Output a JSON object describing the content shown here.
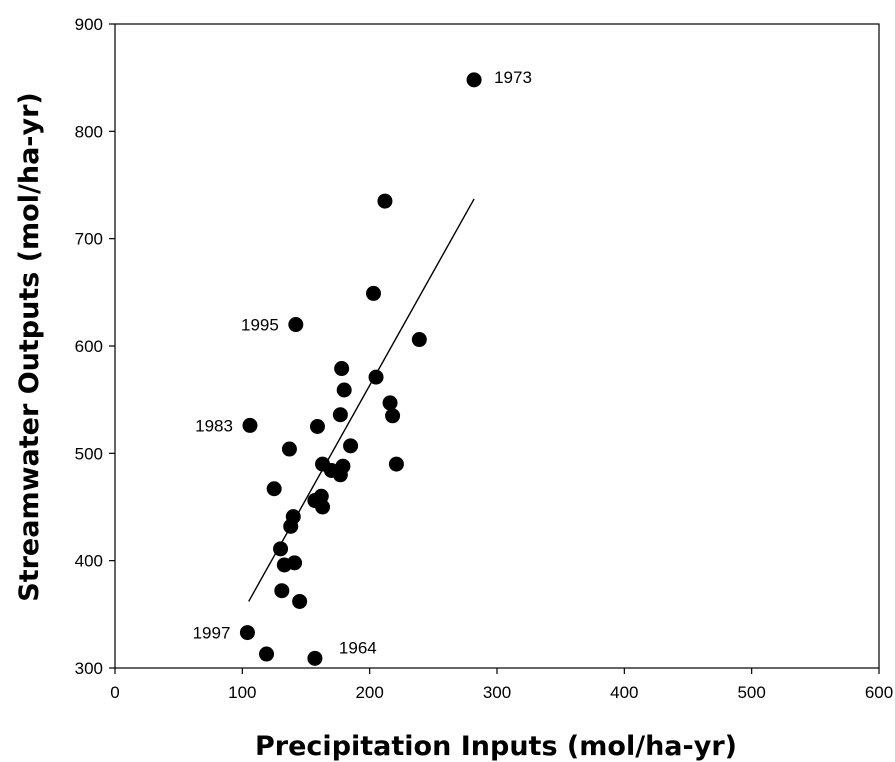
{
  "chart_data": {
    "type": "scatter",
    "title": "",
    "xlabel": "Precipitation Inputs (mol/ha-yr)",
    "ylabel": "Streamwater Outputs  (mol/ha-yr)",
    "xlim": [
      0,
      600
    ],
    "ylim": [
      300,
      900
    ],
    "xticks": [
      "0",
      "100",
      "200",
      "300",
      "400",
      "500",
      "600"
    ],
    "yticks": [
      "300",
      "400",
      "500",
      "600",
      "700",
      "800",
      "900"
    ],
    "grid": false,
    "points": [
      {
        "x": 282,
        "y": 848
      },
      {
        "x": 212,
        "y": 735
      },
      {
        "x": 203,
        "y": 649
      },
      {
        "x": 142,
        "y": 620
      },
      {
        "x": 239,
        "y": 606
      },
      {
        "x": 178,
        "y": 579
      },
      {
        "x": 205,
        "y": 571
      },
      {
        "x": 180,
        "y": 559
      },
      {
        "x": 216,
        "y": 547
      },
      {
        "x": 177,
        "y": 536
      },
      {
        "x": 218,
        "y": 535
      },
      {
        "x": 106,
        "y": 526
      },
      {
        "x": 159,
        "y": 525
      },
      {
        "x": 185,
        "y": 507
      },
      {
        "x": 137,
        "y": 504
      },
      {
        "x": 221,
        "y": 490
      },
      {
        "x": 163,
        "y": 490
      },
      {
        "x": 179,
        "y": 488
      },
      {
        "x": 170,
        "y": 484
      },
      {
        "x": 177,
        "y": 480
      },
      {
        "x": 125,
        "y": 467
      },
      {
        "x": 162,
        "y": 460
      },
      {
        "x": 157,
        "y": 456
      },
      {
        "x": 163,
        "y": 450
      },
      {
        "x": 140,
        "y": 441
      },
      {
        "x": 138,
        "y": 432
      },
      {
        "x": 130,
        "y": 411
      },
      {
        "x": 141,
        "y": 398
      },
      {
        "x": 133,
        "y": 396
      },
      {
        "x": 131,
        "y": 372
      },
      {
        "x": 145,
        "y": 362
      },
      {
        "x": 104,
        "y": 333
      },
      {
        "x": 119,
        "y": 313
      },
      {
        "x": 157,
        "y": 309
      }
    ],
    "trendline": {
      "x1": 105,
      "y1": 362,
      "x2": 282,
      "y2": 737
    },
    "annotations": [
      {
        "text": "1973",
        "x": 282,
        "y": 848,
        "side": "right"
      },
      {
        "text": "1995",
        "x": 142,
        "y": 620,
        "side": "left"
      },
      {
        "text": "1983",
        "x": 106,
        "y": 526,
        "side": "left"
      },
      {
        "text": "1997",
        "x": 104,
        "y": 333,
        "side": "left"
      },
      {
        "text": "1964",
        "x": 157,
        "y": 309,
        "side": "right-up"
      }
    ]
  }
}
